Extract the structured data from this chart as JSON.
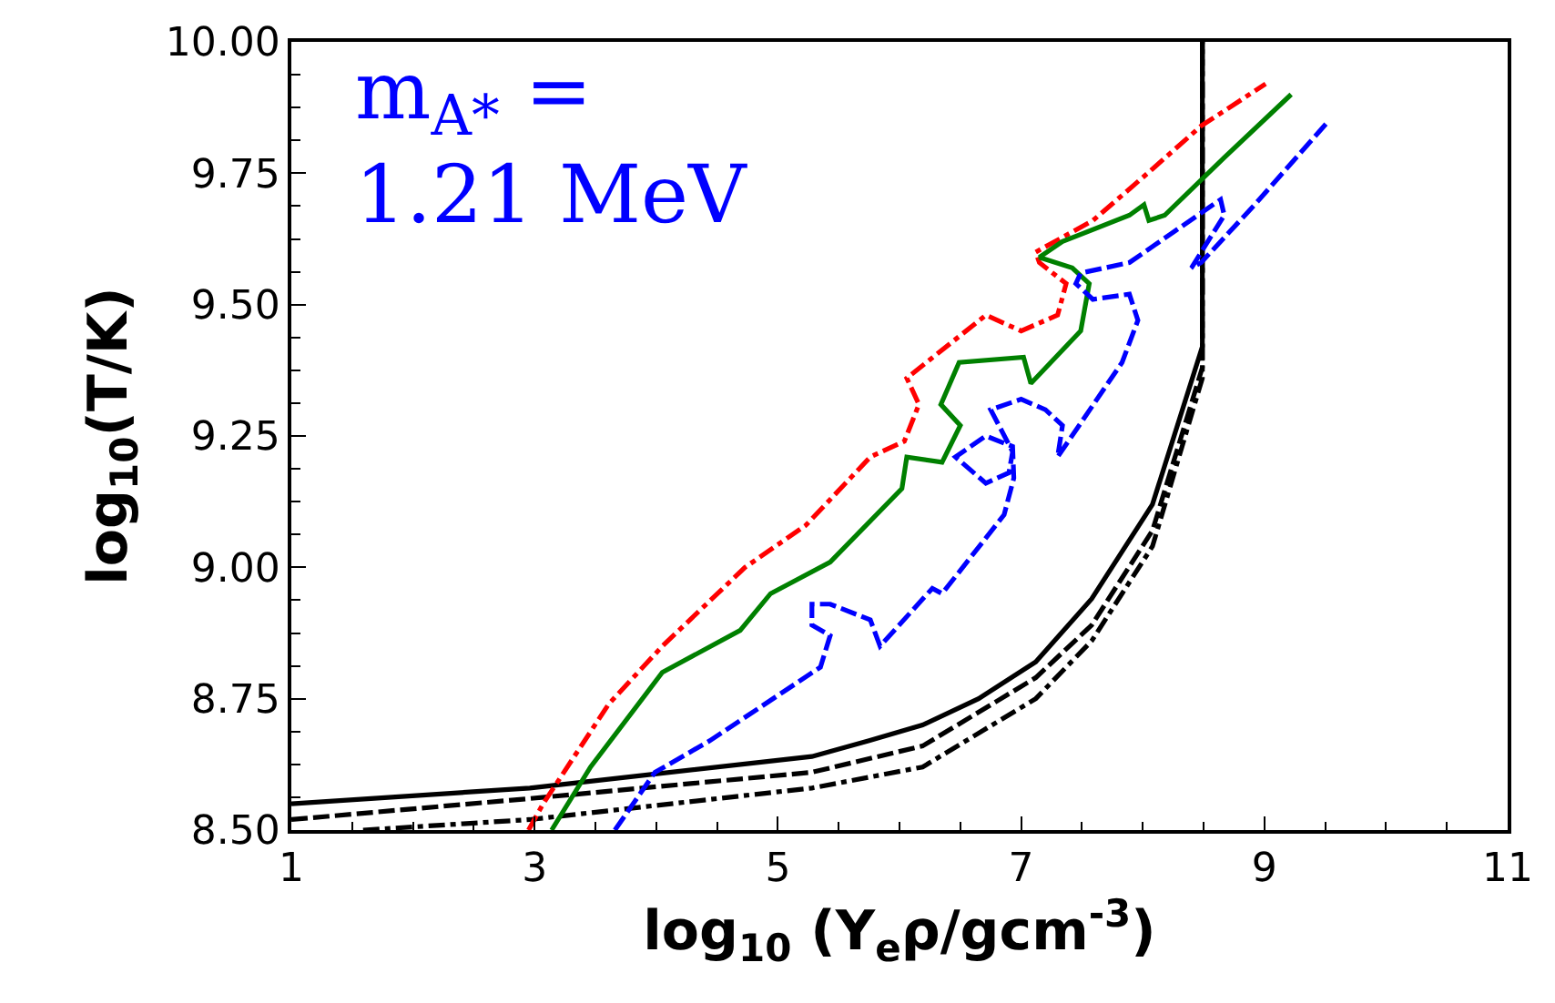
{
  "chart_data": {
    "type": "line",
    "xlabel": "log$_{10}$ (Y$_{e}$ρ/gcm$^{-3}$)",
    "ylabel": "log$_{10}$(T/K)",
    "annotations": [
      "m$_{A*}$ =\n1.21 MeV"
    ],
    "xlim": [
      1,
      11
    ],
    "xticks": [
      1,
      3,
      5,
      7,
      9,
      11
    ],
    "ylim": [
      8.5,
      10.0
    ],
    "yticks": [
      {
        "value": 8.5,
        "label": "8.50"
      },
      {
        "value": 8.75,
        "label": "8.75"
      },
      {
        "value": 9.0,
        "label": "9.00"
      },
      {
        "value": 9.25,
        "label": "9.25"
      },
      {
        "value": 9.5,
        "label": "9.50"
      },
      {
        "value": 9.75,
        "label": "9.75"
      },
      {
        "value": 10.0,
        "label": "10.00"
      }
    ],
    "marker": "none",
    "series": [
      {
        "color": "#000000",
        "line_style": "solid",
        "x": [
          1.0,
          2.96,
          5.28,
          5.75,
          6.19,
          6.65,
          7.12,
          7.58,
          8.08,
          8.49,
          8.49
        ],
        "values": [
          8.55,
          8.58,
          8.64,
          8.67,
          8.7,
          8.75,
          8.82,
          8.94,
          9.12,
          9.42,
          10.0
        ]
      },
      {
        "color": "#000000",
        "line_style": "dashed",
        "x": [
          1.0,
          2.96,
          5.28,
          6.19,
          7.12,
          7.58,
          8.08,
          8.49,
          8.49
        ],
        "values": [
          8.52,
          8.56,
          8.61,
          8.66,
          8.79,
          8.89,
          9.07,
          9.38,
          10.0
        ]
      },
      {
        "color": "#000000",
        "line_style": "dashdot",
        "x": [
          1.59,
          2.96,
          5.28,
          6.19,
          7.12,
          7.58,
          8.08,
          8.49,
          8.49
        ],
        "values": [
          8.5,
          8.52,
          8.58,
          8.62,
          8.75,
          8.86,
          9.04,
          9.36,
          10.0
        ]
      },
      {
        "color": "#ff0000",
        "line_style": "dashdot",
        "x": [
          2.95,
          3.07,
          3.61,
          4.05,
          4.73,
          5.23,
          5.76,
          6.04,
          6.16,
          6.06,
          6.71,
          7.0,
          7.3,
          7.37,
          7.15,
          7.12,
          7.59,
          8.04,
          8.48,
          9.01
        ],
        "values": [
          8.5,
          8.55,
          8.74,
          8.85,
          9.0,
          9.08,
          9.21,
          9.24,
          9.31,
          9.36,
          9.48,
          9.45,
          9.48,
          9.54,
          9.58,
          9.6,
          9.66,
          9.75,
          9.84,
          9.92
        ]
      },
      {
        "color": "#008000",
        "line_style": "solid",
        "x": [
          3.14,
          3.46,
          4.05,
          4.69,
          4.94,
          5.43,
          6.02,
          6.06,
          6.35,
          6.5,
          6.34,
          6.49,
          7.02,
          7.08,
          7.49,
          7.56,
          7.42,
          7.15,
          7.34,
          7.89,
          8.01,
          8.05,
          8.18,
          8.67,
          9.22
        ],
        "values": [
          8.5,
          8.62,
          8.8,
          8.88,
          8.95,
          9.01,
          9.15,
          9.21,
          9.2,
          9.27,
          9.31,
          9.39,
          9.4,
          9.35,
          9.45,
          9.54,
          9.57,
          9.59,
          9.62,
          9.67,
          9.69,
          9.66,
          9.67,
          9.78,
          9.9
        ]
      },
      {
        "color": "#0000ff",
        "line_style": "dashed",
        "x": [
          3.66,
          3.99,
          4.44,
          5.35,
          5.43,
          5.28,
          5.28,
          5.43,
          5.76,
          5.84,
          6.27,
          6.35,
          6.86,
          6.94,
          6.93,
          6.71,
          6.46,
          6.71,
          6.9,
          6.93,
          6.75,
          7.0,
          7.2,
          7.34,
          7.3,
          7.83,
          7.96,
          7.89,
          7.59,
          7.45,
          7.49,
          7.89,
          8.64,
          8.67,
          8.4,
          8.48,
          8.92,
          9.53
        ],
        "values": [
          8.5,
          8.61,
          8.67,
          8.81,
          8.87,
          8.89,
          8.93,
          8.93,
          8.9,
          8.85,
          8.96,
          8.95,
          9.1,
          9.17,
          9.23,
          9.25,
          9.21,
          9.16,
          9.18,
          9.22,
          9.3,
          9.32,
          9.3,
          9.27,
          9.21,
          9.39,
          9.47,
          9.52,
          9.51,
          9.54,
          9.56,
          9.58,
          9.7,
          9.67,
          9.57,
          9.58,
          9.69,
          9.85
        ]
      }
    ]
  }
}
